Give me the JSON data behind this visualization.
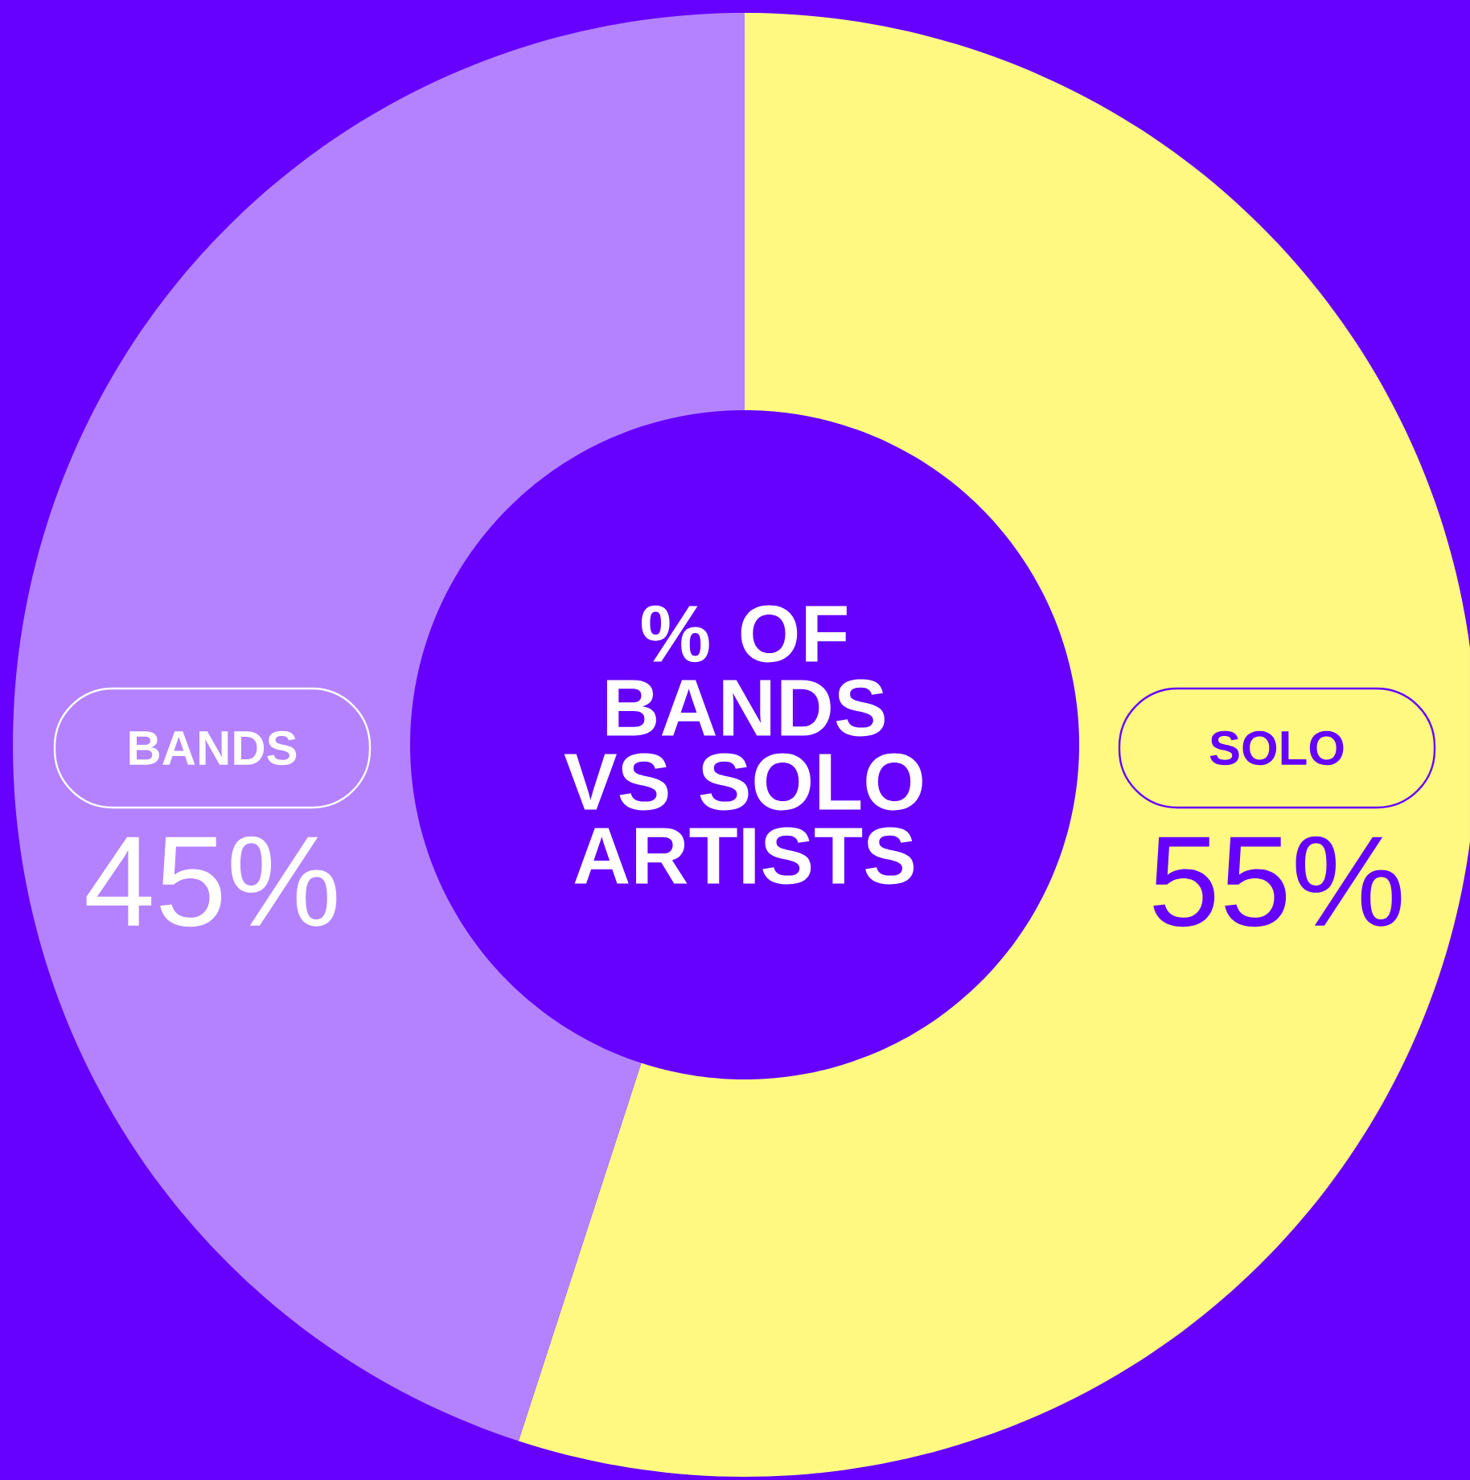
{
  "chart_data": {
    "type": "donut",
    "title": "% OF BANDS VS SOLO ARTISTS",
    "categories": [
      "SOLO",
      "BANDS"
    ],
    "values": [
      55,
      45
    ],
    "colors": [
      "#fff982",
      "#b482ff"
    ],
    "value_labels": [
      "55%",
      "45%"
    ]
  }
}
